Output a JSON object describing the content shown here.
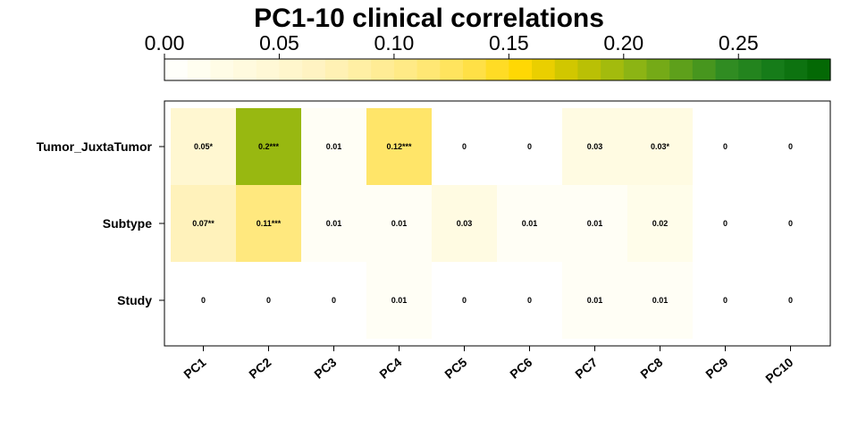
{
  "chart_data": {
    "type": "heatmap",
    "title": "PC1-10 clinical correlations",
    "rows": [
      "Tumor_JuxtaTumor",
      "Subtype",
      "Study"
    ],
    "columns": [
      "PC1",
      "PC2",
      "PC3",
      "PC4",
      "PC5",
      "PC6",
      "PC7",
      "PC8",
      "PC9",
      "PC10"
    ],
    "values": [
      [
        0.05,
        0.2,
        0.01,
        0.12,
        0,
        0,
        0.03,
        0.03,
        0,
        0
      ],
      [
        0.07,
        0.11,
        0.01,
        0.01,
        0.03,
        0.01,
        0.01,
        0.02,
        0,
        0
      ],
      [
        0,
        0,
        0,
        0.01,
        0,
        0,
        0.01,
        0.01,
        0,
        0
      ]
    ],
    "cell_labels": [
      [
        "0.05*",
        "0.2***",
        "0.01",
        "0.12***",
        "0",
        "0",
        "0.03",
        "0.03*",
        "0",
        "0"
      ],
      [
        "0.07**",
        "0.11***",
        "0.01",
        "0.01",
        "0.03",
        "0.01",
        "0.01",
        "0.02",
        "0",
        "0"
      ],
      [
        "0",
        "0",
        "0",
        "0.01",
        "0",
        "0",
        "0.01",
        "0.01",
        "0",
        "0"
      ]
    ],
    "colorbar": {
      "range": [
        0,
        0.29
      ],
      "tick_values": [
        0,
        0.05,
        0.1,
        0.15,
        0.2,
        0.25
      ],
      "tick_labels": [
        "0.00",
        "0.05",
        "0.10",
        "0.15",
        "0.20",
        "0.25"
      ],
      "colors": [
        "#ffffff",
        "#fffde8",
        "#fff8d6",
        "#fff3c0",
        "#ffee9e",
        "#ffe87c",
        "#ffe14a",
        "#ffd700",
        "#c9c400",
        "#96b812",
        "#62a21a",
        "#2f8c22",
        "#137a18",
        "#006400"
      ]
    }
  }
}
